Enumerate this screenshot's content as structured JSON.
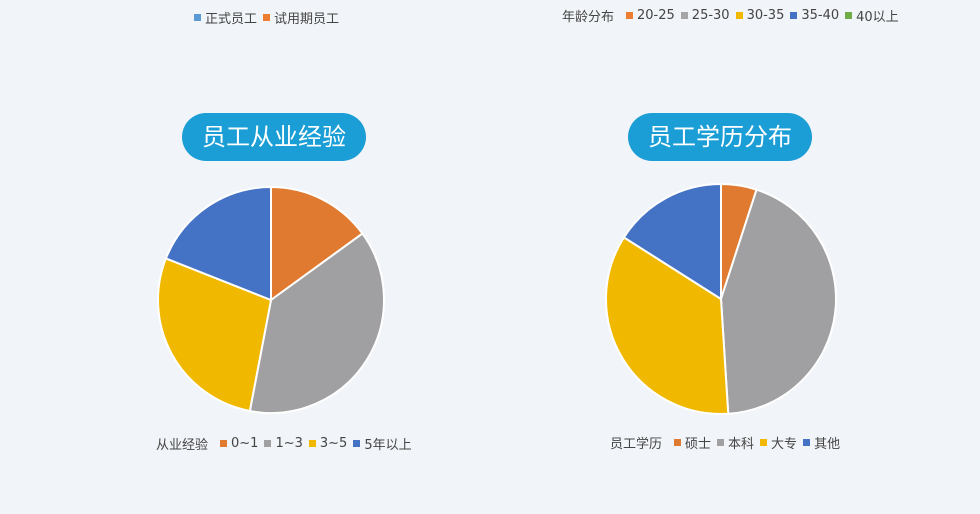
{
  "legend_top_left": {
    "items": [
      {
        "label": "正式员工",
        "color": "#5b9bd5"
      },
      {
        "label": "试用期员工",
        "color": "#ed7d31"
      }
    ]
  },
  "legend_top_right": {
    "title": "年龄分布",
    "items": [
      {
        "label": "20-25",
        "color": "#ed7d31"
      },
      {
        "label": "25-30",
        "color": "#a5a5a5"
      },
      {
        "label": "30-35",
        "color": "#f0b800"
      },
      {
        "label": "35-40",
        "color": "#4472c4"
      },
      {
        "label": "40以上",
        "color": "#70ad47"
      }
    ]
  },
  "chart_data": [
    {
      "type": "pie",
      "title": "员工从业经验",
      "legend_title": "从业经验",
      "legend_position": "bottom",
      "categories": [
        "0~1",
        "1~3",
        "3~5",
        "5年以上"
      ],
      "values": [
        15,
        38,
        28,
        19
      ],
      "colors": [
        "#e07a30",
        "#a0a0a2",
        "#f1b800",
        "#4472c4"
      ]
    },
    {
      "type": "pie",
      "title": "员工学历分布",
      "legend_title": "员工学历",
      "legend_position": "bottom",
      "categories": [
        "硕士",
        "本科",
        "大专",
        "其他"
      ],
      "values": [
        5,
        44,
        35,
        16
      ],
      "colors": [
        "#e07a30",
        "#a0a0a2",
        "#f1b800",
        "#4472c4"
      ]
    }
  ]
}
